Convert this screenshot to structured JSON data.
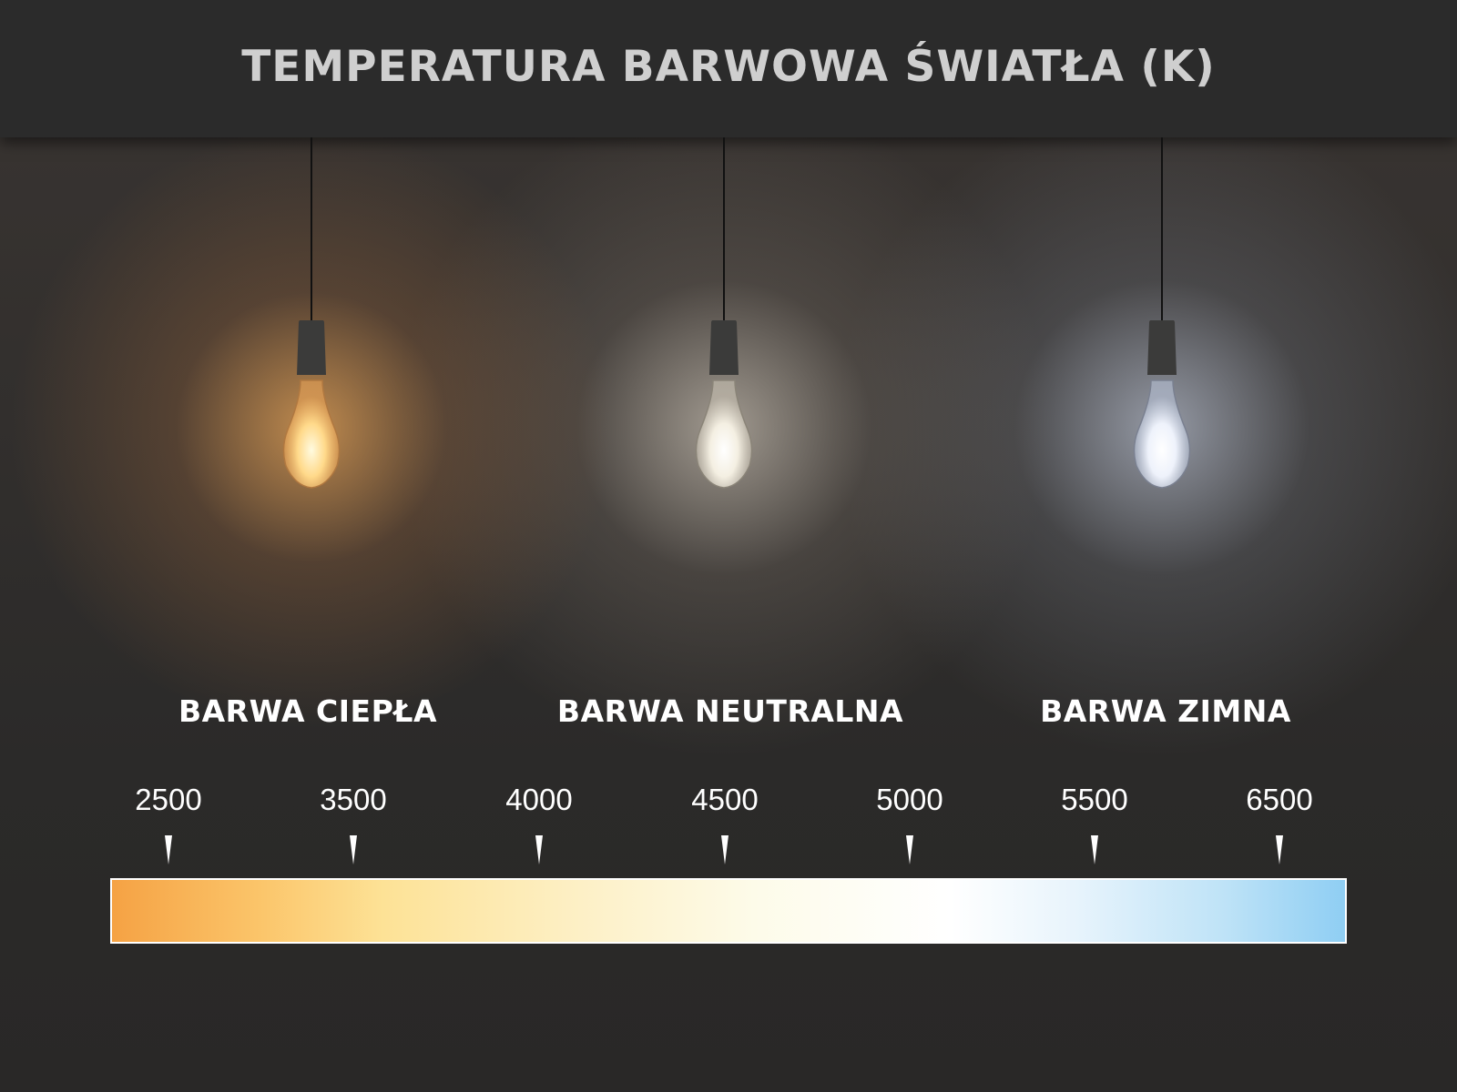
{
  "title": "TEMPERATURA BARWOWA ŚWIATŁA (K)",
  "categories": [
    {
      "label": "BARWA CIEPŁA",
      "glow_color": "#f0aa5a"
    },
    {
      "label": "BARWA NEUTRALNA",
      "glow_color": "#ebe1d2"
    },
    {
      "label": "BARWA ZIMNA",
      "glow_color": "#d7e1f5"
    }
  ],
  "scale": {
    "ticks": [
      "2500",
      "3500",
      "4000",
      "4500",
      "5000",
      "5500",
      "6500"
    ],
    "gradient_colors": [
      "#f5a244",
      "#fde296",
      "#ffffff",
      "#8fcef3"
    ]
  }
}
